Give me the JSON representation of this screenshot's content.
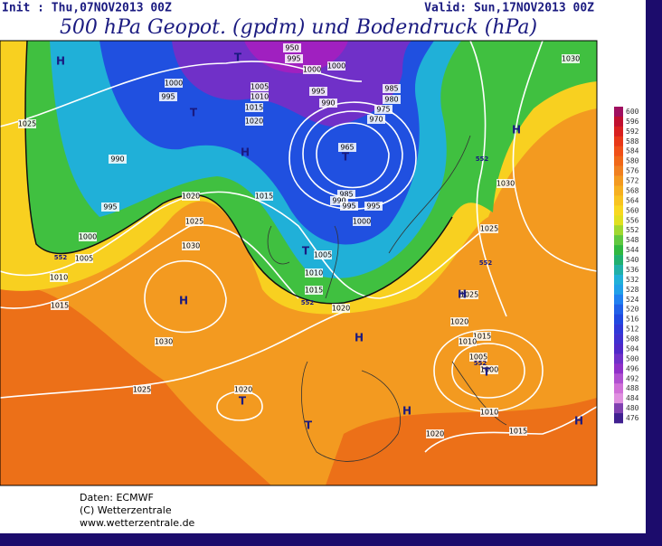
{
  "header": {
    "init": "Init : Thu,07NOV2013 00Z",
    "valid": "Valid: Sun,17NOV2013 00Z",
    "title": "500 hPa Geopot. (gpdm) und Bodendruck (hPa)"
  },
  "map": {
    "isobar_labels": [
      "950",
      "995",
      "1000",
      "1000",
      "1000",
      "995",
      "1005",
      "1010",
      "1015",
      "1020",
      "995",
      "990",
      "985",
      "980",
      "975",
      "970",
      "965",
      "985",
      "990",
      "995",
      "995",
      "1000",
      "1030",
      "1025",
      "990",
      "995",
      "1000",
      "1005",
      "1010",
      "1015",
      "1020",
      "1015",
      "1025",
      "1030",
      "1030",
      "1025",
      "1020",
      "1020",
      "1005",
      "1010",
      "1015",
      "1030",
      "1025",
      "1025",
      "1020",
      "1015",
      "1010",
      "1005",
      "1000",
      "1010",
      "1015",
      "1020"
    ],
    "centers": [
      "H",
      "T",
      "T",
      "H",
      "T",
      "H",
      "H",
      "T",
      "H",
      "H",
      "T",
      "T",
      "H",
      "H",
      "T"
    ],
    "height_labels": [
      "552",
      "552",
      "552",
      "552",
      "552"
    ]
  },
  "legend": {
    "values": [
      600,
      596,
      592,
      588,
      584,
      580,
      576,
      572,
      568,
      564,
      560,
      556,
      552,
      548,
      544,
      540,
      536,
      532,
      528,
      524,
      520,
      516,
      512,
      508,
      504,
      500,
      496,
      492,
      488,
      484,
      480,
      476
    ]
  },
  "footer": {
    "lines": [
      "Daten: ECMWF",
      "(C) Wetterzentrale",
      "www.wetterzentrale.de"
    ]
  }
}
